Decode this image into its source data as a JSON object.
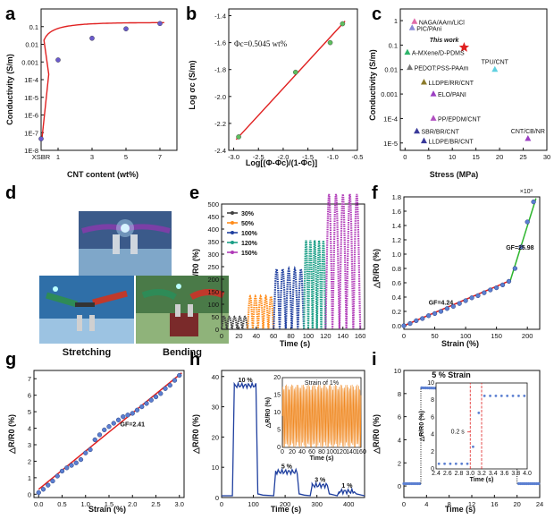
{
  "panels": {
    "a": {
      "label": "a",
      "xlabel": "CNT content (wt%)",
      "ylabel": "Conductivity (S/m)",
      "xticks": [
        "XSBR",
        "1",
        "3",
        "5",
        "7"
      ],
      "yticks": [
        "1E-8",
        "1E-7",
        "1E-6",
        "1E-5",
        "1E-4",
        "0.001",
        "0.01",
        "0.1"
      ]
    },
    "b": {
      "label": "b",
      "xlabel": "Log[(Φ-Φc)/(1-Φc)]",
      "ylabel": "Log σc (S/m)",
      "annotation": "Φc=0.5045 wt%",
      "xticks": [
        "-3.0",
        "-2.5",
        "-2.0",
        "-1.5",
        "-1.0",
        "-0.5"
      ],
      "yticks": [
        "-2.4",
        "-2.2",
        "-2.0",
        "-1.8",
        "-1.6",
        "-1.4"
      ]
    },
    "c": {
      "label": "c",
      "xlabel": "Stress (MPa)",
      "ylabel": "Conductivity (S/m)",
      "xticks": [
        "0",
        "5",
        "10",
        "15",
        "20",
        "25",
        "30"
      ],
      "yticks": [
        "1E-5",
        "1E-4",
        "0.001",
        "0.01",
        "0.1",
        "1"
      ]
    },
    "d": {
      "label": "d",
      "captions": [
        "Stretching",
        "Bending"
      ]
    },
    "e": {
      "label": "e",
      "xlabel": "Time (s)",
      "ylabel": "△R/R0 (%)",
      "xticks": [
        "0",
        "20",
        "40",
        "60",
        "80",
        "100",
        "120",
        "140",
        "160"
      ],
      "yticks": [
        "0",
        "50",
        "100",
        "150",
        "200",
        "250",
        "300",
        "350",
        "400",
        "450",
        "500"
      ]
    },
    "f": {
      "label": "f",
      "xlabel": "Strain (%)",
      "ylabel": "△R/R0 (%)",
      "exponent": "×10³",
      "gf1": "GF=4.24",
      "gf2": "GF=25.98",
      "xticks": [
        "0",
        "50",
        "100",
        "150",
        "200"
      ],
      "yticks": [
        "0.0",
        "0.2",
        "0.4",
        "0.6",
        "0.8",
        "1.0",
        "1.2",
        "1.4",
        "1.6",
        "1.8"
      ]
    },
    "g": {
      "label": "g",
      "xlabel": "Strain (%)",
      "ylabel": "△R/R0 (%)",
      "gf": "GF=2.41",
      "xticks": [
        "0.0",
        "0.5",
        "1.0",
        "1.5",
        "2.0",
        "2.5",
        "3.0"
      ],
      "yticks": [
        "0",
        "1",
        "2",
        "3",
        "4",
        "5",
        "6",
        "7"
      ]
    },
    "h": {
      "label": "h",
      "xlabel": "Time (s)",
      "ylabel": "△R/R0 (%)",
      "inset_title": "Strain of 1%",
      "inset_xlabel": "Time (s)",
      "inset_ylabel": "△R/R0 (%)",
      "xticks": [
        "0",
        "100",
        "200",
        "300",
        "400"
      ],
      "yticks": [
        "0",
        "10",
        "20",
        "30",
        "40"
      ],
      "inset_xticks": [
        "0",
        "20",
        "40",
        "60",
        "80",
        "100",
        "120",
        "140",
        "160"
      ],
      "inset_yticks": [
        "0",
        "5",
        "10",
        "15",
        "20"
      ],
      "step_labels": [
        "10 %",
        "5 %",
        "3 %",
        "1 %"
      ]
    },
    "i": {
      "label": "i",
      "xlabel": "Time (s)",
      "ylabel": "△R/R0 (%)",
      "title": "5 % Strain",
      "inset_xlabel": "Time (s)",
      "inset_ylabel": "△R/R0 (%)",
      "resp": "0.2 s",
      "xticks": [
        "0",
        "4",
        "8",
        "12",
        "16",
        "20",
        "24"
      ],
      "yticks": [
        "0",
        "2",
        "4",
        "6",
        "8",
        "10"
      ],
      "inset_xticks": [
        "2.4",
        "2.6",
        "2.8",
        "3.0",
        "3.2",
        "3.4",
        "3.6",
        "3.8",
        "4.0"
      ],
      "inset_yticks": [
        "0",
        "2",
        "4",
        "6",
        "8",
        "10"
      ]
    }
  },
  "chart_data": [
    {
      "type": "scatter",
      "panel": "a",
      "x": [
        0,
        1,
        3,
        5,
        7
      ],
      "y": [
        4.5e-08,
        0.0013,
        0.022,
        0.075,
        0.15
      ],
      "fit": "saturating curve",
      "yscale": "log",
      "ylim": [
        1e-08,
        1
      ],
      "xlim": [
        0,
        8
      ]
    },
    {
      "type": "line",
      "panel": "b",
      "x": [
        -2.9,
        -1.75,
        -1.05,
        -0.8
      ],
      "y": [
        -2.3,
        -1.82,
        -1.6,
        -1.46
      ],
      "xlim": [
        -3.1,
        -0.5
      ],
      "ylim": [
        -2.4,
        -1.35
      ]
    },
    {
      "type": "scatter",
      "panel": "c",
      "yscale": "log",
      "xlim": [
        -1,
        30
      ],
      "ylim": [
        5e-06,
        3
      ],
      "points": [
        {
          "name": "NAGA/AAm/LiCl",
          "x": 2,
          "y": 0.9
        },
        {
          "name": "PIC/PAni",
          "x": 1.5,
          "y": 0.5
        },
        {
          "name": "This work",
          "x": 12.5,
          "y": 0.08
        },
        {
          "name": "A-MXene/D-PDMS",
          "x": 0.5,
          "y": 0.05
        },
        {
          "name": "TPU/CNT",
          "x": 19,
          "y": 0.01
        },
        {
          "name": "PEDOT:PSS-PAAm",
          "x": 1,
          "y": 0.012
        },
        {
          "name": "LLDPE/RR/CNT",
          "x": 4,
          "y": 0.003
        },
        {
          "name": "ELO/PANI",
          "x": 6,
          "y": 0.001
        },
        {
          "name": "PP/EPDM/CNT",
          "x": 6,
          "y": 0.0001
        },
        {
          "name": "SBR/BR/CNT",
          "x": 2.5,
          "y": 3e-05
        },
        {
          "name": "LLDPE/BR/CNT",
          "x": 4,
          "y": 1.2e-05
        },
        {
          "name": "CNT/CB/NR",
          "x": 26,
          "y": 1.5e-05
        }
      ]
    },
    {
      "type": "line",
      "panel": "e",
      "xlim": [
        0,
        165
      ],
      "ylim": [
        0,
        500
      ],
      "series": [
        {
          "name": "30%",
          "t": [
            0,
            30
          ],
          "peak": 50,
          "color": "#404040"
        },
        {
          "name": "50%",
          "t": [
            30,
            60
          ],
          "peak": 135,
          "color": "#ff8c1a"
        },
        {
          "name": "100%",
          "t": [
            60,
            95
          ],
          "peak": 250,
          "color": "#1f3f9f"
        },
        {
          "name": "120%",
          "t": [
            95,
            120
          ],
          "peak": 370,
          "color": "#1a9e86"
        },
        {
          "name": "150%",
          "t": [
            120,
            160
          ],
          "peak": 565,
          "color": "#b03ab8"
        }
      ]
    },
    {
      "type": "scatter",
      "panel": "f",
      "xlim": [
        0,
        220
      ],
      "ylim": [
        -0.05,
        1.8
      ],
      "x": [
        0,
        10,
        20,
        30,
        40,
        50,
        60,
        70,
        80,
        90,
        100,
        110,
        120,
        130,
        140,
        150,
        160,
        170,
        180,
        190,
        200,
        210
      ],
      "y": [
        0,
        0.03,
        0.07,
        0.1,
        0.14,
        0.17,
        0.2,
        0.24,
        0.27,
        0.31,
        0.35,
        0.39,
        0.42,
        0.46,
        0.5,
        0.53,
        0.57,
        0.62,
        0.8,
        1.1,
        1.45,
        1.73
      ]
    },
    {
      "type": "scatter",
      "panel": "g",
      "xlim": [
        -0.1,
        3.1
      ],
      "ylim": [
        -0.2,
        7.5
      ],
      "x": [
        0,
        0.1,
        0.2,
        0.3,
        0.4,
        0.5,
        0.6,
        0.7,
        0.8,
        0.9,
        1,
        1.1,
        1.2,
        1.3,
        1.4,
        1.5,
        1.6,
        1.7,
        1.8,
        1.9,
        2,
        2.1,
        2.2,
        2.3,
        2.4,
        2.5,
        2.6,
        2.7,
        2.8,
        2.9,
        3
      ],
      "y": [
        0.1,
        0.3,
        0.55,
        0.8,
        1.1,
        1.4,
        1.6,
        1.75,
        1.9,
        2.1,
        2.5,
        2.7,
        3.3,
        3.6,
        3.9,
        4.1,
        4.3,
        4.5,
        4.7,
        4.8,
        4.9,
        5.1,
        5.3,
        5.5,
        5.7,
        5.9,
        6.1,
        6.4,
        6.6,
        6.9,
        7.2
      ]
    },
    {
      "type": "line",
      "panel": "h",
      "xlim": [
        0,
        450
      ],
      "ylim": [
        0,
        42
      ],
      "steps": [
        {
          "strain": "10 %",
          "t": [
            40,
            110
          ],
          "level": 37
        },
        {
          "strain": "5 %",
          "t": [
            170,
            240
          ],
          "level": 8.5
        },
        {
          "strain": "3 %",
          "t": [
            285,
            335
          ],
          "level": 4
        },
        {
          "strain": "1 %",
          "t": [
            370,
            420
          ],
          "level": 2
        }
      ],
      "inset": {
        "type": "line",
        "xlim": [
          0,
          160
        ],
        "ylim": [
          0,
          20
        ],
        "peak": 18
      }
    },
    {
      "type": "scatter",
      "panel": "i",
      "xlim": [
        0,
        24
      ],
      "ylim": [
        -1,
        10
      ],
      "plateau": 8.5,
      "t_on": 3,
      "t_off": 20,
      "inset": {
        "xlim": [
          2.4,
          4.0
        ],
        "ylim": [
          0,
          10
        ],
        "t_on": 3.0,
        "t_rise_end": 3.2,
        "level": 8.5
      }
    }
  ]
}
